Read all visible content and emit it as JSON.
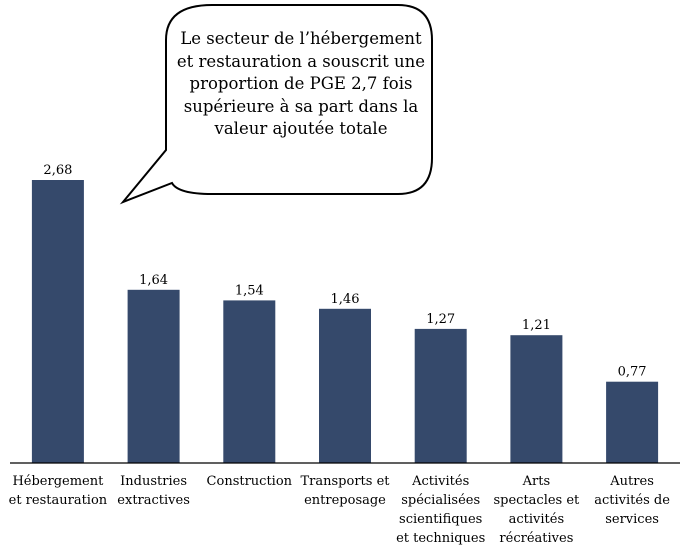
{
  "colors": {
    "bar": "#35496b",
    "axis": "#000000",
    "callout_stroke": "#000000",
    "callout_fill": "#ffffff"
  },
  "callout": {
    "text": "Le secteur de l’hébergement et restauration a souscrit une proportion de PGE 2,7 fois supérieure à sa part dans la valeur ajoutée totale"
  },
  "chart_data": {
    "type": "bar",
    "title": "",
    "xlabel": "",
    "ylabel": "",
    "ylim": [
      0,
      3
    ],
    "grid": false,
    "categories": [
      "Hébergement et restauration",
      "Industries extractives",
      "Construction",
      "Transports et entreposage",
      "Activités spécialisées scientifiques et techniques",
      "Arts spectacles et activités récréatives",
      "Autres activités de services"
    ],
    "values": [
      2.68,
      1.64,
      1.54,
      1.46,
      1.27,
      1.21,
      0.77
    ],
    "data_labels": [
      "2,68",
      "1,64",
      "1,54",
      "1,46",
      "1,27",
      "1,21",
      "0,77"
    ]
  }
}
